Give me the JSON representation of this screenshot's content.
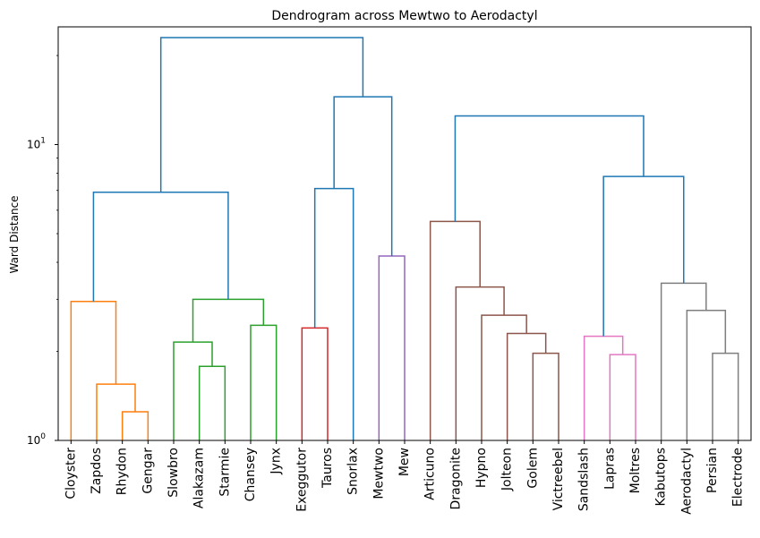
{
  "chart_data": {
    "type": "dendrogram",
    "title": "Dendrogram across Mewtwo to Aerodactyl",
    "ylabel": "Ward Distance",
    "xlabel": "",
    "yscale": "log",
    "ylim": [
      1.0,
      25.0
    ],
    "yticks": [
      {
        "value": 1.0,
        "label": "10",
        "exp": "0"
      },
      {
        "value": 10.0,
        "label": "10",
        "exp": "1"
      }
    ],
    "leaves": [
      "Cloyster",
      "Zapdos",
      "Rhydon",
      "Gengar",
      "Slowbro",
      "Alakazam",
      "Starmie",
      "Chansey",
      "Jynx",
      "Exeggutor",
      "Tauros",
      "Snorlax",
      "Mewtwo",
      "Mew",
      "Articuno",
      "Dragonite",
      "Hypno",
      "Jolteon",
      "Golem",
      "Victreebel",
      "Sandslash",
      "Lapras",
      "Moltres",
      "Kabutops",
      "Aerodactyl",
      "Persian",
      "Electrode"
    ],
    "colors": {
      "orange": "#ff7f0e",
      "green": "#2ca02c",
      "red": "#d62728",
      "purple": "#9467bd",
      "brown": "#8c564b",
      "pink": "#e377c2",
      "gray": "#7f7f7f",
      "blue": "#1f77b4"
    },
    "merges": [
      {
        "id": "m1",
        "left": "Rhydon",
        "right": "Gengar",
        "height": 1.25,
        "color": "orange"
      },
      {
        "id": "m2",
        "left": "Zapdos",
        "right": "m1",
        "height": 1.55,
        "color": "orange"
      },
      {
        "id": "m3",
        "left": "Cloyster",
        "right": "m2",
        "height": 2.95,
        "color": "orange"
      },
      {
        "id": "m4",
        "left": "Alakazam",
        "right": "Starmie",
        "height": 1.78,
        "color": "green"
      },
      {
        "id": "m5",
        "left": "Slowbro",
        "right": "m4",
        "height": 2.15,
        "color": "green"
      },
      {
        "id": "m6",
        "left": "Chansey",
        "right": "Jynx",
        "height": 2.45,
        "color": "green"
      },
      {
        "id": "m7",
        "left": "m5",
        "right": "m6",
        "height": 3.0,
        "color": "green"
      },
      {
        "id": "m8",
        "left": "m3",
        "right": "m7",
        "height": 6.9,
        "color": "blue"
      },
      {
        "id": "m9",
        "left": "Exeggutor",
        "right": "Tauros",
        "height": 2.4,
        "color": "red"
      },
      {
        "id": "m10",
        "left": "Mewtwo",
        "right": "Mew",
        "height": 4.2,
        "color": "purple"
      },
      {
        "id": "m11",
        "left": "m9",
        "right": "Snorlax",
        "height": 7.1,
        "color": "blue"
      },
      {
        "id": "m12",
        "left": "Golem",
        "right": "Victreebel",
        "height": 1.97,
        "color": "brown"
      },
      {
        "id": "m13",
        "left": "Jolteon",
        "right": "m12",
        "height": 2.3,
        "color": "brown"
      },
      {
        "id": "m14",
        "left": "Hypno",
        "right": "m13",
        "height": 2.65,
        "color": "brown"
      },
      {
        "id": "m15",
        "left": "Dragonite",
        "right": "m14",
        "height": 3.3,
        "color": "brown"
      },
      {
        "id": "m16",
        "left": "Articuno",
        "right": "m15",
        "height": 5.5,
        "color": "brown"
      },
      {
        "id": "m17",
        "left": "Lapras",
        "right": "Moltres",
        "height": 1.95,
        "color": "pink"
      },
      {
        "id": "m18",
        "left": "Sandslash",
        "right": "m17",
        "height": 2.25,
        "color": "pink"
      },
      {
        "id": "m19",
        "left": "Persian",
        "right": "Electrode",
        "height": 1.97,
        "color": "gray"
      },
      {
        "id": "m20",
        "left": "Aerodactyl",
        "right": "m19",
        "height": 2.75,
        "color": "gray"
      },
      {
        "id": "m21",
        "left": "Kabutops",
        "right": "m20",
        "height": 3.4,
        "color": "gray"
      },
      {
        "id": "m22",
        "left": "m18",
        "right": "m21",
        "height": 7.8,
        "color": "blue"
      },
      {
        "id": "m23",
        "left": "m16",
        "right": "m22",
        "height": 12.5,
        "color": "blue"
      },
      {
        "id": "m24",
        "left": "m11",
        "right": "m10",
        "height": 14.5,
        "color": "blue"
      },
      {
        "id": "m25",
        "left": "m8",
        "right": "m24",
        "height": 23.0,
        "color": "blue"
      }
    ]
  }
}
